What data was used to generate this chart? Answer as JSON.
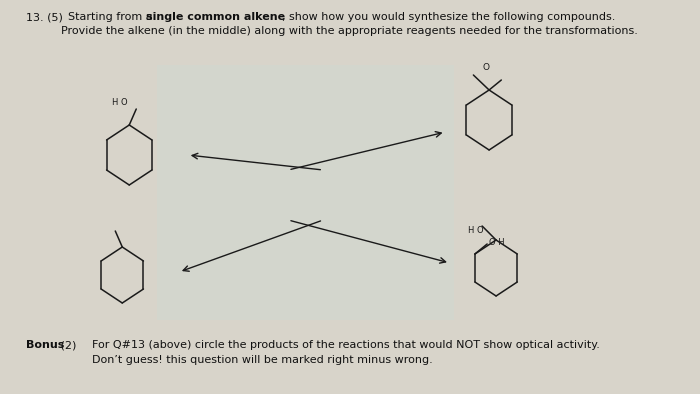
{
  "bg_color": "#d8d4ca",
  "center_bg": "#c8cfc8",
  "title_text1_normal": "13. (5)  Starting from a ",
  "title_text1_bold": "single common alkene",
  "title_text1_end": ", show how you would synthesize the following compounds.",
  "title_text2": "           Provide the alkene (in the middle) along with the appropriate reagents needed for the transformations.",
  "bonus_bold": "Bonus",
  "bonus_normal": " (2)    For Q#13 (above) circle the products of the reactions that would NOT show optical activity.",
  "bonus_line2": "                Don’t guess! this question will be marked right minus wrong.",
  "arrow_color": "#1a1a1a",
  "mol_color": "#1a1a1a",
  "text_color": "#111111",
  "mol_lw": 1.1,
  "arrow_lw": 1.0
}
